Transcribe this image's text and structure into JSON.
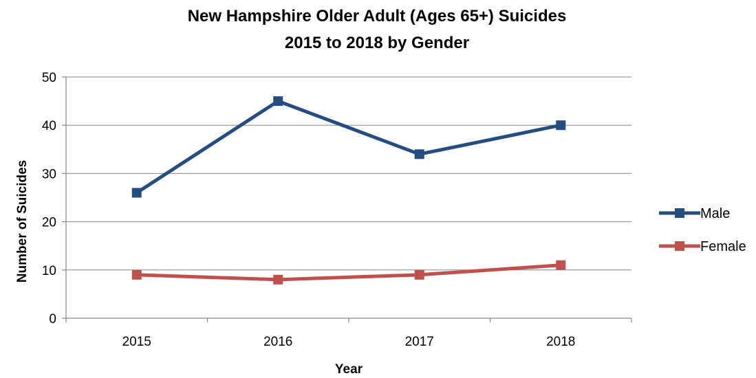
{
  "chart_data": {
    "type": "line",
    "title": [
      "New Hampshire Older Adult (Ages 65+) Suicides",
      "2015 to 2018 by Gender"
    ],
    "xlabel": "Year",
    "ylabel": "Number of Suicides",
    "categories": [
      "2015",
      "2016",
      "2017",
      "2018"
    ],
    "ylim": [
      0,
      50
    ],
    "yticks": [
      0,
      10,
      20,
      30,
      40,
      50
    ],
    "grid": true,
    "legend_position": "right",
    "series": [
      {
        "name": "Male",
        "values": [
          26,
          45,
          34,
          40
        ],
        "color": "#254D80"
      },
      {
        "name": "Female",
        "values": [
          9,
          8,
          9,
          11
        ],
        "color": "#C0504D"
      }
    ]
  }
}
